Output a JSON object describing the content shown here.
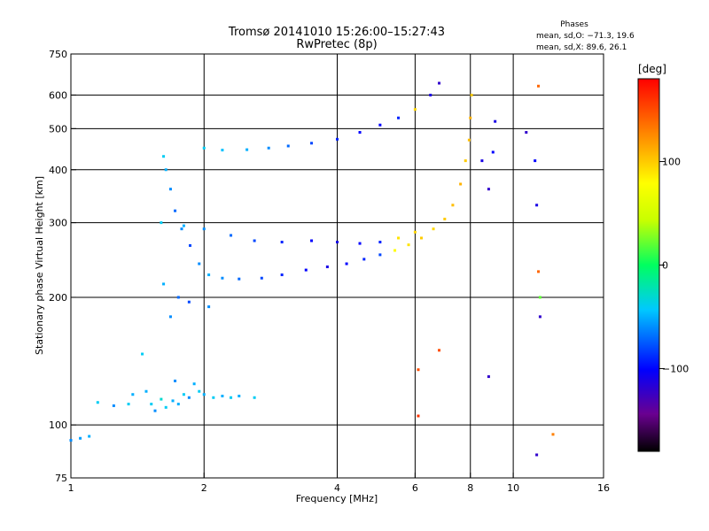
{
  "chart_data": {
    "type": "scatter",
    "title": "Tromsø 20141010 15:26:00–15:27:43",
    "subtitle": "RwPretec (8p)",
    "xlabel": "Frequency [MHz]",
    "ylabel": "Stationary phase Virtual Height [km]",
    "x_scale": "log",
    "y_scale": "log",
    "xlim": [
      1,
      16
    ],
    "ylim": [
      75,
      750
    ],
    "x_ticks": [
      1,
      2,
      4,
      6,
      8,
      10,
      16
    ],
    "y_ticks": [
      75,
      100,
      200,
      300,
      400,
      500,
      600,
      750
    ],
    "grid": true,
    "phase_info": {
      "heading": "Phases",
      "line_o": "mean, sd,O: −71.3, 19.6",
      "line_x": "mean, sd,X:  89.6, 26.1"
    },
    "colorbar": {
      "label": "[deg]",
      "range": [
        -180,
        180
      ],
      "ticks": [
        100,
        0,
        -100
      ],
      "tick_labels": [
        "100",
        "0",
        "−100"
      ],
      "colormap": "rainbow"
    },
    "series": [
      {
        "name": "",
        "points": [
          [
            1.0,
            92,
            -60
          ],
          [
            1.05,
            93,
            -55
          ],
          [
            1.1,
            94,
            -50
          ],
          [
            1.15,
            113,
            -40
          ],
          [
            1.25,
            111,
            -60
          ],
          [
            1.35,
            112,
            -40
          ],
          [
            1.38,
            118,
            -50
          ],
          [
            1.45,
            147,
            -40
          ],
          [
            1.48,
            120,
            -50
          ],
          [
            1.52,
            112,
            -40
          ],
          [
            1.55,
            108,
            -60
          ],
          [
            1.6,
            115,
            -30
          ],
          [
            1.64,
            110,
            -40
          ],
          [
            1.7,
            114,
            -50
          ],
          [
            1.72,
            127,
            -60
          ],
          [
            1.75,
            112,
            -50
          ],
          [
            1.8,
            118,
            -40
          ],
          [
            1.85,
            116,
            -60
          ],
          [
            1.9,
            125,
            -50
          ],
          [
            1.95,
            120,
            -40
          ],
          [
            2.0,
            118,
            -50
          ],
          [
            2.1,
            116,
            -40
          ],
          [
            2.2,
            117,
            -50
          ],
          [
            2.3,
            116,
            -40
          ],
          [
            2.4,
            117,
            -50
          ],
          [
            2.6,
            116,
            -40
          ],
          [
            1.62,
            215,
            -50
          ],
          [
            1.68,
            180,
            -60
          ],
          [
            1.75,
            200,
            -70
          ],
          [
            1.85,
            195,
            -80
          ],
          [
            2.05,
            190,
            -60
          ]
        ]
      },
      {
        "name": "",
        "points": [
          [
            1.62,
            430,
            -40
          ],
          [
            1.64,
            400,
            -50
          ],
          [
            1.68,
            360,
            -60
          ],
          [
            1.72,
            320,
            -70
          ],
          [
            1.78,
            290,
            -60
          ],
          [
            1.86,
            265,
            -80
          ],
          [
            1.95,
            240,
            -60
          ],
          [
            2.05,
            226,
            -50
          ],
          [
            2.2,
            222,
            -60
          ],
          [
            2.4,
            221,
            -70
          ],
          [
            2.7,
            222,
            -80
          ],
          [
            3.0,
            226,
            -90
          ],
          [
            3.4,
            232,
            -100
          ],
          [
            3.8,
            236,
            -110
          ],
          [
            4.2,
            240,
            -100
          ],
          [
            4.6,
            246,
            -90
          ],
          [
            5.0,
            252,
            -80
          ],
          [
            5.4,
            258,
            80
          ],
          [
            5.8,
            266,
            90
          ],
          [
            6.2,
            276,
            100
          ],
          [
            6.6,
            290,
            95
          ],
          [
            7.0,
            306,
            100
          ],
          [
            7.3,
            330,
            105
          ],
          [
            7.6,
            370,
            110
          ],
          [
            7.8,
            420,
            100
          ],
          [
            7.95,
            470,
            105
          ],
          [
            8.0,
            530,
            110
          ],
          [
            8.05,
            600,
            100
          ]
        ]
      },
      {
        "name": "",
        "points": [
          [
            1.6,
            300,
            -40
          ],
          [
            1.8,
            295,
            -50
          ],
          [
            2.0,
            290,
            -60
          ],
          [
            2.3,
            280,
            -70
          ],
          [
            2.6,
            272,
            -80
          ],
          [
            3.0,
            270,
            -90
          ],
          [
            3.5,
            272,
            -100
          ],
          [
            4.0,
            270,
            -110
          ],
          [
            4.5,
            268,
            -100
          ],
          [
            5.0,
            270,
            -90
          ],
          [
            5.5,
            276,
            90
          ],
          [
            6.0,
            285,
            95
          ]
        ]
      },
      {
        "name": "",
        "points": [
          [
            2.0,
            450,
            -40
          ],
          [
            2.2,
            445,
            -45
          ],
          [
            2.5,
            446,
            -50
          ],
          [
            2.8,
            450,
            -60
          ],
          [
            3.1,
            455,
            -70
          ],
          [
            3.5,
            462,
            -80
          ],
          [
            4.0,
            472,
            -90
          ],
          [
            4.5,
            490,
            -100
          ],
          [
            5.0,
            510,
            -100
          ],
          [
            5.5,
            530,
            -90
          ],
          [
            6.0,
            555,
            95
          ],
          [
            6.5,
            600,
            -110
          ],
          [
            6.8,
            640,
            -120
          ]
        ]
      },
      {
        "name": "",
        "points": [
          [
            8.5,
            420,
            -110
          ],
          [
            8.8,
            360,
            -120
          ],
          [
            9.0,
            440,
            -100
          ],
          [
            9.1,
            520,
            -110
          ],
          [
            10.7,
            490,
            -120
          ],
          [
            11.2,
            420,
            -100
          ],
          [
            11.3,
            330,
            -110
          ],
          [
            11.4,
            630,
            140
          ],
          [
            11.4,
            230,
            140
          ],
          [
            11.5,
            200,
            20
          ],
          [
            11.5,
            180,
            -120
          ],
          [
            11.3,
            85,
            -120
          ],
          [
            6.1,
            135,
            150
          ],
          [
            6.1,
            105,
            160
          ],
          [
            6.8,
            150,
            150
          ],
          [
            8.8,
            130,
            -120
          ],
          [
            12.3,
            95,
            130
          ]
        ]
      }
    ]
  }
}
